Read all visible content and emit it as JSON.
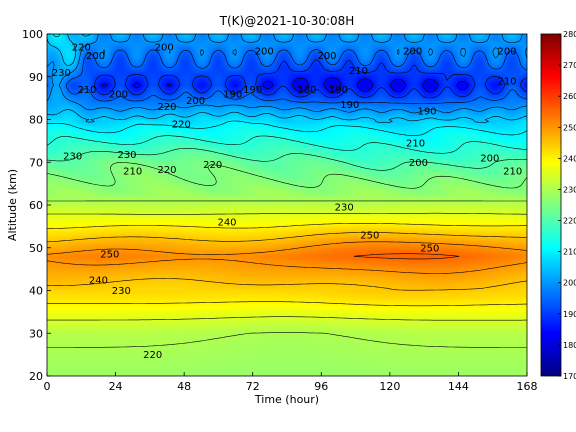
{
  "chart_data": {
    "type": "heatmap",
    "title": "T(K)@2021-10-30:08H",
    "xlabel": "Time (hour)",
    "ylabel": "Altitude (km)",
    "xlim": [
      0,
      168
    ],
    "ylim": [
      20,
      100
    ],
    "x_ticks": [
      0,
      24,
      48,
      72,
      96,
      120,
      144,
      168
    ],
    "y_ticks": [
      20,
      30,
      40,
      50,
      60,
      70,
      80,
      90,
      100
    ],
    "colorbar": {
      "min": 170,
      "max": 280,
      "ticks": [
        170,
        180,
        190,
        200,
        210,
        220,
        230,
        240,
        250,
        260,
        270,
        280
      ],
      "colormap": "jet",
      "position": "right"
    },
    "contour_interval": 5,
    "contour_labels": [
      {
        "x": 9,
        "y": 71.5,
        "text": "230"
      },
      {
        "x": 28,
        "y": 71.8,
        "text": "230"
      },
      {
        "x": 30,
        "y": 68,
        "text": "210"
      },
      {
        "x": 42,
        "y": 68.3,
        "text": "220"
      },
      {
        "x": 58,
        "y": 69.5,
        "text": "220"
      },
      {
        "x": 42,
        "y": 83,
        "text": "220"
      },
      {
        "x": 47,
        "y": 79,
        "text": "220"
      },
      {
        "x": 25,
        "y": 86,
        "text": "200"
      },
      {
        "x": 52,
        "y": 84.5,
        "text": "200"
      },
      {
        "x": 65,
        "y": 86,
        "text": "190"
      },
      {
        "x": 72,
        "y": 87,
        "text": "190"
      },
      {
        "x": 91,
        "y": 87,
        "text": "180"
      },
      {
        "x": 102,
        "y": 87,
        "text": "190"
      },
      {
        "x": 106,
        "y": 83.5,
        "text": "190"
      },
      {
        "x": 109,
        "y": 91.5,
        "text": "210"
      },
      {
        "x": 128,
        "y": 96,
        "text": "200"
      },
      {
        "x": 133,
        "y": 82,
        "text": "190"
      },
      {
        "x": 161,
        "y": 89,
        "text": "210"
      },
      {
        "x": 161,
        "y": 96,
        "text": "200"
      },
      {
        "x": 129,
        "y": 74.5,
        "text": "210"
      },
      {
        "x": 130,
        "y": 70,
        "text": "200"
      },
      {
        "x": 155,
        "y": 71,
        "text": "200"
      },
      {
        "x": 163,
        "y": 68,
        "text": "210"
      },
      {
        "x": 104,
        "y": 59.5,
        "text": "230"
      },
      {
        "x": 63,
        "y": 56,
        "text": "240"
      },
      {
        "x": 113,
        "y": 53,
        "text": "250"
      },
      {
        "x": 134,
        "y": 50,
        "text": "250"
      },
      {
        "x": 22,
        "y": 48.5,
        "text": "250"
      },
      {
        "x": 18,
        "y": 42.5,
        "text": "240"
      },
      {
        "x": 26,
        "y": 40,
        "text": "230"
      },
      {
        "x": 37,
        "y": 25,
        "text": "220"
      },
      {
        "x": 12,
        "y": 97,
        "text": "220"
      },
      {
        "x": 5,
        "y": 91,
        "text": "230"
      },
      {
        "x": 17,
        "y": 95,
        "text": "200"
      },
      {
        "x": 41,
        "y": 97,
        "text": "200"
      },
      {
        "x": 98,
        "y": 95,
        "text": "200"
      },
      {
        "x": 76,
        "y": 96,
        "text": "200"
      },
      {
        "x": 14,
        "y": 87,
        "text": "210"
      }
    ],
    "grid": false
  }
}
